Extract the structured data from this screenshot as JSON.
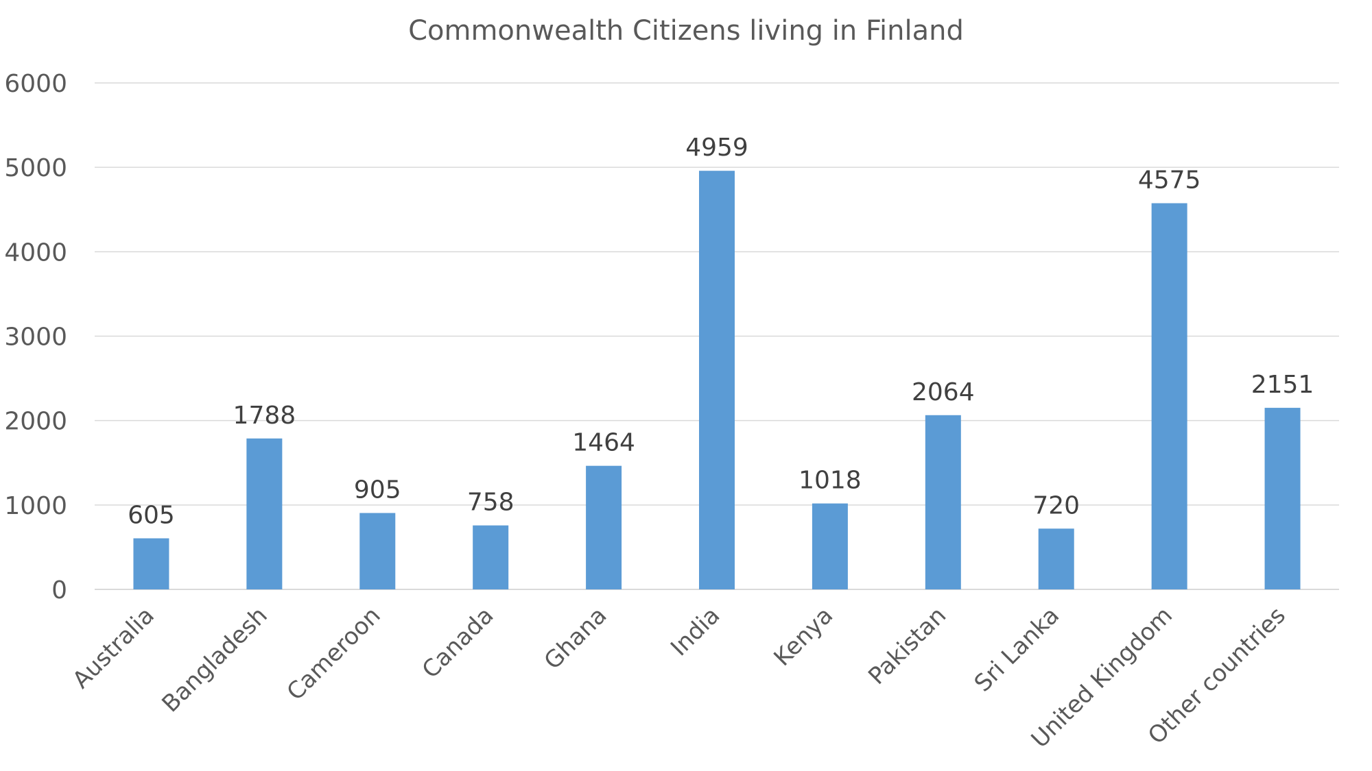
{
  "chart_data": {
    "type": "bar",
    "title": "Commonwealth Citizens living in Finland",
    "xlabel": "",
    "ylabel": "",
    "categories": [
      "Australia",
      "Bangladesh",
      "Cameroon",
      "Canada",
      "Ghana",
      "India",
      "Kenya",
      "Pakistan",
      "Sri Lanka",
      "United Kingdom",
      "Other countries"
    ],
    "values": [
      605,
      1788,
      905,
      758,
      1464,
      4959,
      1018,
      2064,
      720,
      4575,
      2151
    ],
    "ylim": [
      0,
      6000
    ],
    "yticks": [
      "0",
      "1000",
      "2000",
      "3000",
      "4000",
      "5000",
      "6000"
    ],
    "grid": true,
    "legend": "none",
    "bar_color": "#5B9BD5",
    "grid_color": "#D9D9D9",
    "text_color": "#595959",
    "label_color": "#404040"
  }
}
